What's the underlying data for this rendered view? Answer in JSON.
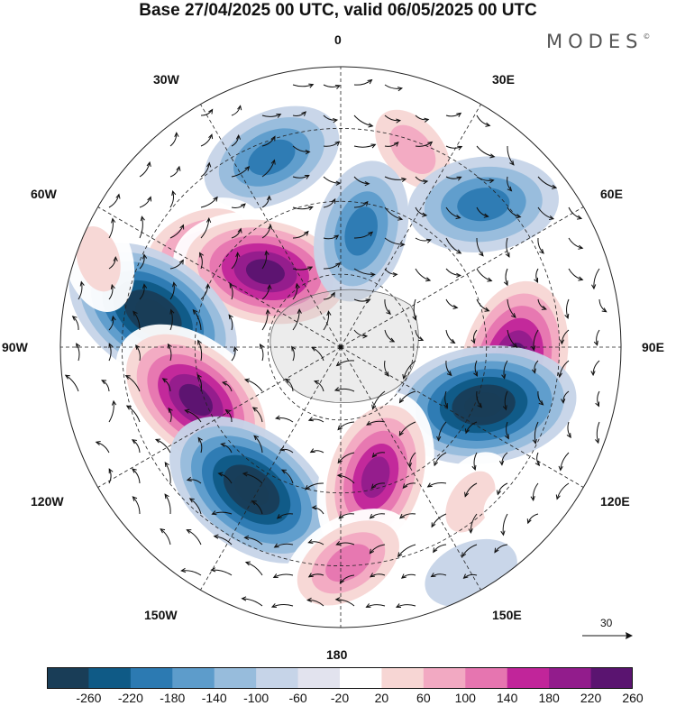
{
  "title": "Base 27/04/2025 00 UTC, valid 06/05/2025 00 UTC",
  "logo": {
    "text": "MODES",
    "mark": "©"
  },
  "longitude_labels": {
    "top": "0",
    "top_right": "30E",
    "right_upper": "60E",
    "right": "90E",
    "right_lower": "120E",
    "bottom_right": "150E",
    "bottom": "180",
    "bottom_left": "150W",
    "left_lower": "120W",
    "left": "90W",
    "left_upper": "60W",
    "top_left": "30W"
  },
  "reference_vector": {
    "label": "30"
  },
  "colorbar": {
    "ticks": [
      "-260",
      "-220",
      "-180",
      "-140",
      "-100",
      "-60",
      "-20",
      "20",
      "60",
      "100",
      "140",
      "180",
      "220",
      "260"
    ],
    "colors": [
      "#193d57",
      "#0f5a86",
      "#2c7ab2",
      "#5d9ccb",
      "#97bcdc",
      "#c6d4e8",
      "#e2e3ee",
      "#ffffff",
      "#f7d6d4",
      "#f2a9c2",
      "#e675b0",
      "#c1259a",
      "#921c8c",
      "#5a1470"
    ]
  },
  "anomalies": [
    {
      "lon": -20,
      "lat_frac": 0.72,
      "value": -150
    },
    {
      "lon": 20,
      "lat_frac": 0.75,
      "value": 110
    },
    {
      "lon": -55,
      "lat_frac": 0.62,
      "value": 140
    },
    {
      "lon": -45,
      "lat_frac": 0.38,
      "value": 260
    },
    {
      "lon": 10,
      "lat_frac": 0.42,
      "value": -150
    },
    {
      "lon": 45,
      "lat_frac": 0.72,
      "value": -170
    },
    {
      "lon": -80,
      "lat_frac": 0.68,
      "value": -260
    },
    {
      "lon": 95,
      "lat_frac": 0.62,
      "value": 270
    },
    {
      "lon": -110,
      "lat_frac": 0.55,
      "value": 260
    },
    {
      "lon": 112,
      "lat_frac": 0.55,
      "value": -260
    },
    {
      "lon": -148,
      "lat_frac": 0.6,
      "value": -260
    },
    {
      "lon": 165,
      "lat_frac": 0.48,
      "value": 230
    },
    {
      "lon": 178,
      "lat_frac": 0.77,
      "value": 150
    },
    {
      "lon": 140,
      "lat_frac": 0.72,
      "value": 60
    },
    {
      "lon": 150,
      "lat_frac": 0.93,
      "value": -30
    },
    {
      "lon": -70,
      "lat_frac": 0.92,
      "value": 60
    },
    {
      "lon": 130,
      "lat_frac": 0.9,
      "value": 40
    }
  ]
}
